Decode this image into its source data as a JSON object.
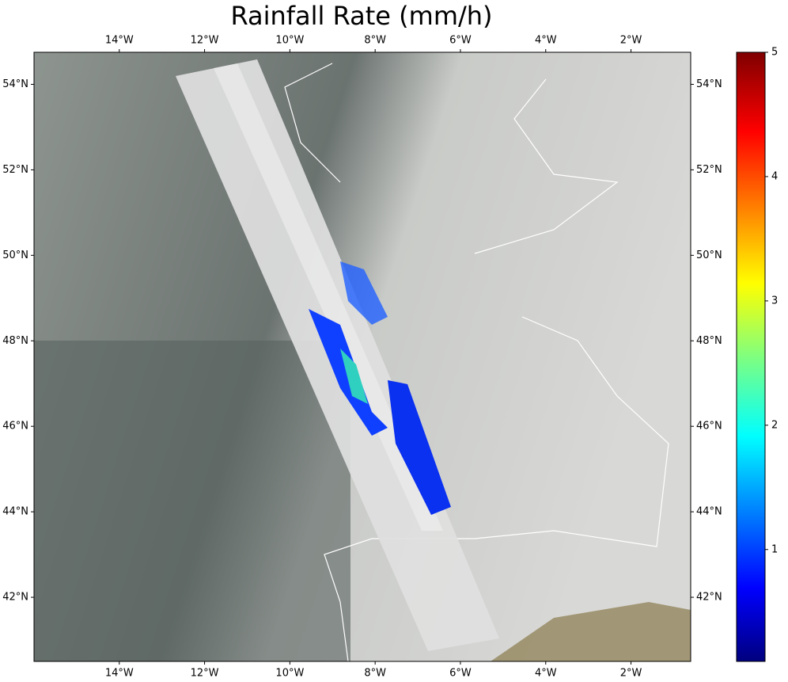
{
  "map": {
    "title": "Rainfall Rate (mm/h)",
    "xlim": [
      -16,
      -0.6
    ],
    "ylim": [
      40.5,
      54.75
    ],
    "xticks": [
      {
        "value": -14,
        "label": "14°W"
      },
      {
        "value": -12,
        "label": "12°W"
      },
      {
        "value": -10,
        "label": "10°W"
      },
      {
        "value": -8,
        "label": "8°W"
      },
      {
        "value": -6,
        "label": "6°W"
      },
      {
        "value": -4,
        "label": "4°W"
      },
      {
        "value": -2,
        "label": "2°W"
      }
    ],
    "yticks": [
      {
        "value": 42,
        "label": "42°N"
      },
      {
        "value": 44,
        "label": "44°N"
      },
      {
        "value": 46,
        "label": "46°N"
      },
      {
        "value": 48,
        "label": "48°N"
      },
      {
        "value": 50,
        "label": "50°N"
      },
      {
        "value": 52,
        "label": "52°N"
      },
      {
        "value": 54,
        "label": "54°N"
      }
    ],
    "colorbar": {
      "lim": [
        0.1,
        5
      ],
      "ticks": [
        1,
        2,
        3,
        4,
        5
      ]
    }
  }
}
